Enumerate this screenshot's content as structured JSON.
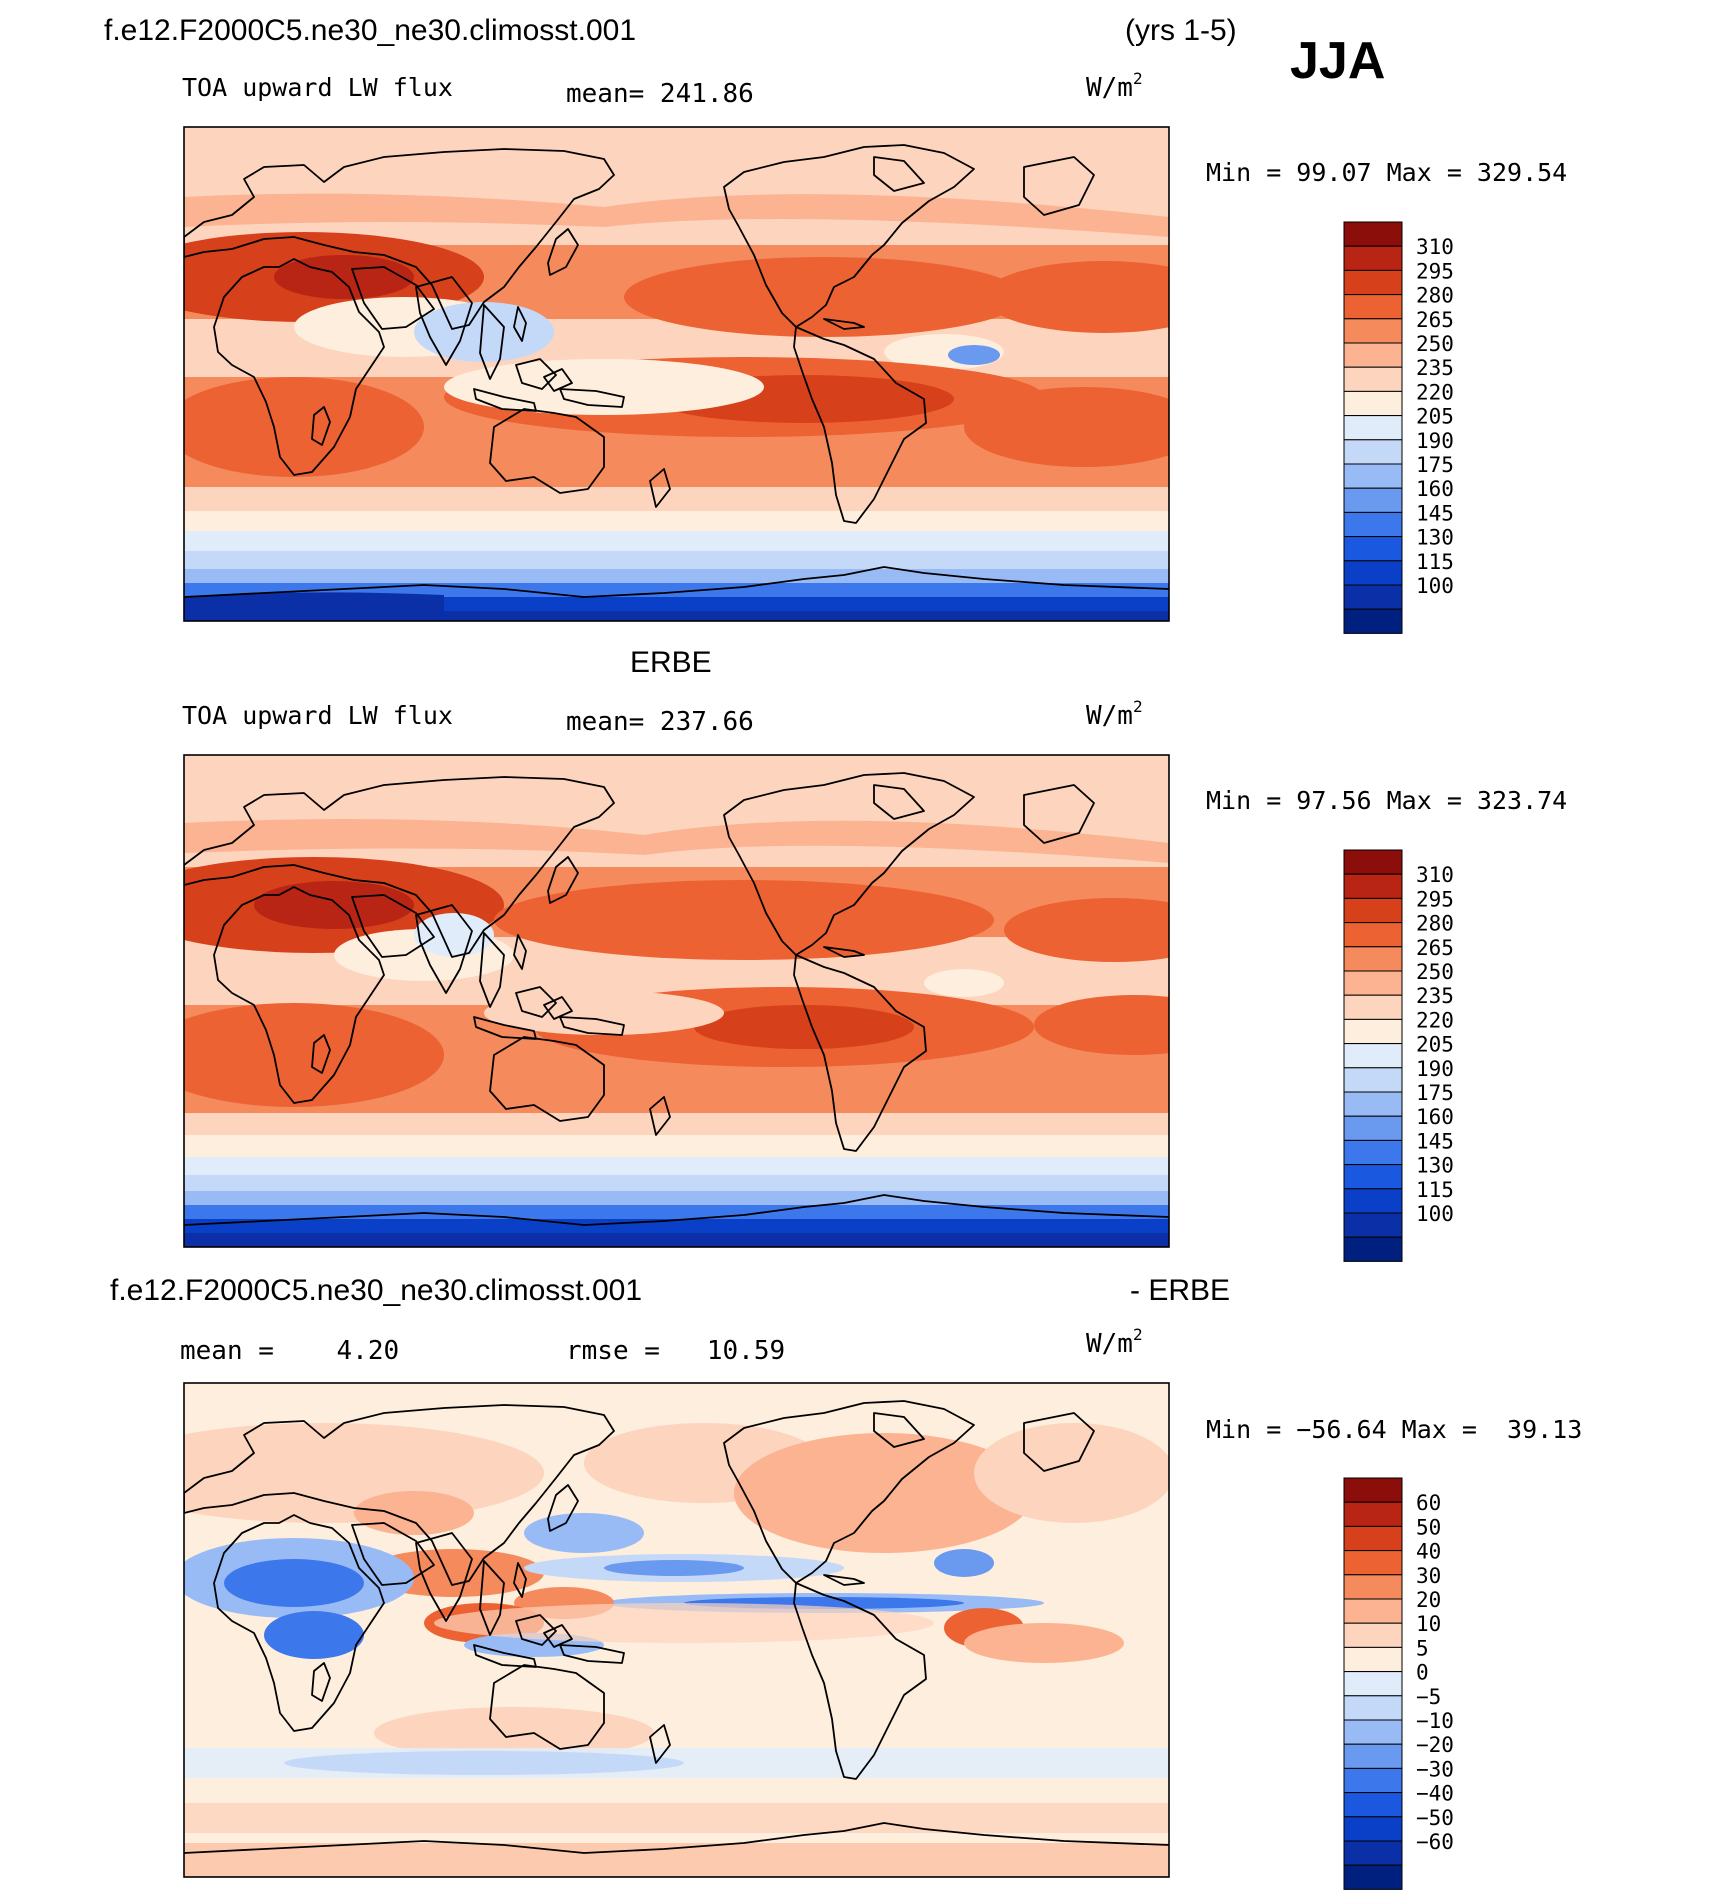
{
  "header": {
    "case_name": "f.e12.F2000C5.ne30_ne30.climosst.001",
    "years": "(yrs 1-5)",
    "season": "JJA"
  },
  "panels": [
    {
      "variable": "TOA upward LW flux",
      "mean_text": "mean= 241.86",
      "units_base": "W/m",
      "units_exp": "2",
      "minmax": "Min =   99.07 Max = 329.54",
      "levels": [
        "310",
        "295",
        "280",
        "265",
        "250",
        "235",
        "220",
        "205",
        "190",
        "175",
        "160",
        "145",
        "130",
        "115",
        "100"
      ]
    },
    {
      "heading": "ERBE",
      "variable": "TOA upward LW flux",
      "mean_text": "mean= 237.66",
      "units_base": "W/m",
      "units_exp": "2",
      "minmax": "Min =   97.56 Max = 323.74",
      "levels": [
        "310",
        "295",
        "280",
        "265",
        "250",
        "235",
        "220",
        "205",
        "190",
        "175",
        "160",
        "145",
        "130",
        "115",
        "100"
      ]
    },
    {
      "heading_left": "f.e12.F2000C5.ne30_ne30.climosst.001",
      "heading_right": "- ERBE",
      "mean_text": "mean =    4.20",
      "rmse_text": "rmse =   10.59",
      "units_base": "W/m",
      "units_exp": "2",
      "minmax": "Min = −56.64 Max =  39.13",
      "levels": [
        "60",
        "50",
        "40",
        "30",
        "20",
        "10",
        "5",
        "0",
        "−5",
        "−10",
        "−20",
        "−30",
        "−40",
        "−50",
        "−60"
      ]
    }
  ],
  "chart_data": [
    {
      "type": "heatmap",
      "title": "TOA upward LW flux",
      "subtitle": "f.e12.F2000C5.ne30_ne30.climosst.001 (yrs 1-5) JJA",
      "units": "W/m2",
      "mean": 241.86,
      "min": 99.07,
      "max": 329.54,
      "contour_levels": [
        100,
        115,
        130,
        145,
        160,
        175,
        190,
        205,
        220,
        235,
        250,
        265,
        280,
        295,
        310
      ],
      "colors": [
        "#00207f",
        "#0a2fa6",
        "#0a40c8",
        "#1b58e0",
        "#3d77ec",
        "#6a99f0",
        "#98bbf5",
        "#c4d9f8",
        "#e0ecfa",
        "#fdeedd",
        "#fdd4bd",
        "#fbb391",
        "#f58a5c",
        "#ec6232",
        "#d6401b",
        "#b82514",
        "#8b0e0b"
      ]
    },
    {
      "type": "heatmap",
      "title": "TOA upward LW flux",
      "subtitle": "ERBE",
      "units": "W/m2",
      "mean": 237.66,
      "min": 97.56,
      "max": 323.74,
      "contour_levels": [
        100,
        115,
        130,
        145,
        160,
        175,
        190,
        205,
        220,
        235,
        250,
        265,
        280,
        295,
        310
      ],
      "colors": [
        "#00207f",
        "#0a2fa6",
        "#0a40c8",
        "#1b58e0",
        "#3d77ec",
        "#6a99f0",
        "#98bbf5",
        "#c4d9f8",
        "#e0ecfa",
        "#fdeedd",
        "#fdd4bd",
        "#fbb391",
        "#f58a5c",
        "#ec6232",
        "#d6401b",
        "#b82514",
        "#8b0e0b"
      ]
    },
    {
      "type": "heatmap",
      "title": "f.e12.F2000C5.ne30_ne30.climosst.001 - ERBE",
      "units": "W/m2",
      "mean": 4.2,
      "rmse": 10.59,
      "min": -56.64,
      "max": 39.13,
      "contour_levels": [
        -60,
        -50,
        -40,
        -30,
        -20,
        -10,
        -5,
        0,
        5,
        10,
        20,
        30,
        40,
        50,
        60
      ],
      "colors": [
        "#00207f",
        "#0a2fa6",
        "#0a40c8",
        "#1b58e0",
        "#3d77ec",
        "#6a99f0",
        "#98bbf5",
        "#c4d9f8",
        "#e0ecfa",
        "#fdeedd",
        "#fdd4bd",
        "#fbb391",
        "#f58a5c",
        "#ec6232",
        "#d6401b",
        "#b82514",
        "#8b0e0b"
      ]
    }
  ]
}
